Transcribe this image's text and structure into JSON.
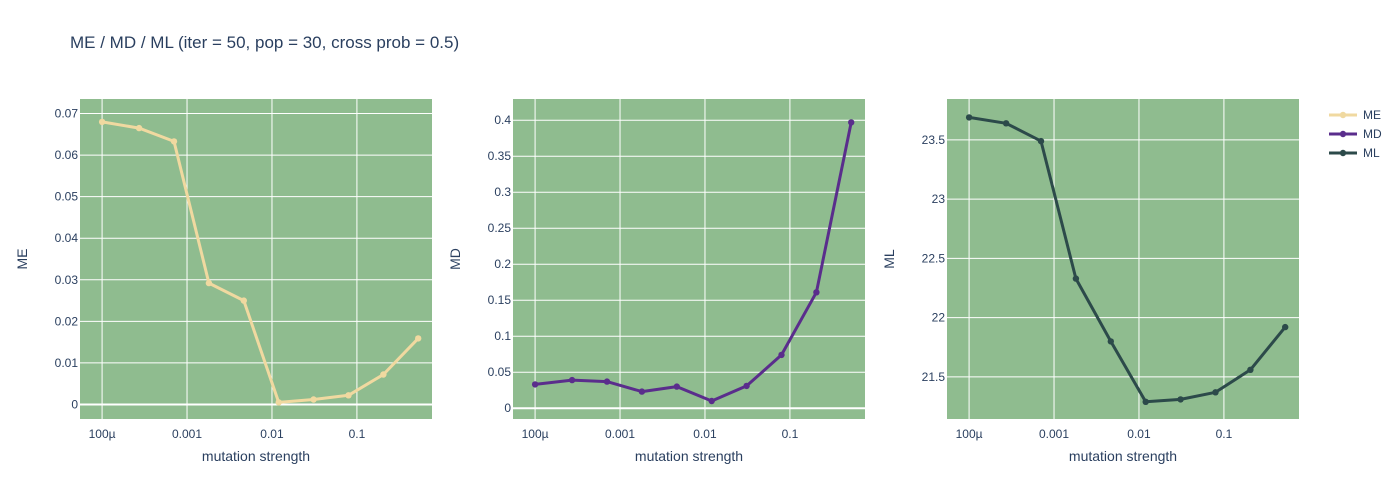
{
  "title": "ME / MD / ML (iter = 50, pop = 30, cross prob = 0.5)",
  "colors": {
    "plot_background": "#8fbc8f",
    "grid": "#ffffff",
    "ME": "#f0d9a0",
    "MD": "#5a2d8c",
    "ML": "#2c4a4a"
  },
  "chart_data": [
    {
      "type": "line",
      "xlabel": "mutation strength",
      "ylabel": "ME",
      "xscale": "log",
      "x_ticks": [
        "100µ",
        "0.001",
        "0.01",
        "0.1"
      ],
      "y_ticks": [
        "0",
        "0.01",
        "0.02",
        "0.03",
        "0.04",
        "0.05",
        "0.06",
        "0.07"
      ],
      "grid": true,
      "series": [
        {
          "name": "ME",
          "x": [
            0.0001,
            0.000273,
            0.000703,
            0.00181,
            0.00466,
            0.012,
            0.0309,
            0.0796,
            0.205,
            0.527
          ],
          "y": [
            0.068,
            0.0665,
            0.0633,
            0.0292,
            0.025,
            0.0005,
            0.0012,
            0.0022,
            0.0072,
            0.0159
          ]
        }
      ]
    },
    {
      "type": "line",
      "xlabel": "mutation strength",
      "ylabel": "MD",
      "xscale": "log",
      "x_ticks": [
        "100µ",
        "0.001",
        "0.01",
        "0.1"
      ],
      "y_ticks": [
        "0",
        "0.05",
        "0.1",
        "0.15",
        "0.2",
        "0.25",
        "0.3",
        "0.35",
        "0.4"
      ],
      "grid": true,
      "series": [
        {
          "name": "MD",
          "x": [
            0.0001,
            0.000273,
            0.000703,
            0.00181,
            0.00466,
            0.012,
            0.0309,
            0.0796,
            0.205,
            0.527
          ],
          "y": [
            0.033,
            0.039,
            0.037,
            0.023,
            0.03,
            0.01,
            0.031,
            0.074,
            0.161,
            0.397
          ]
        }
      ]
    },
    {
      "type": "line",
      "xlabel": "mutation strength",
      "ylabel": "ML",
      "xscale": "log",
      "x_ticks": [
        "100µ",
        "0.001",
        "0.01",
        "0.1"
      ],
      "y_ticks": [
        "21.5",
        "22",
        "22.5",
        "23",
        "23.5"
      ],
      "grid": true,
      "series": [
        {
          "name": "ML",
          "x": [
            0.0001,
            0.000273,
            0.000703,
            0.00181,
            0.00466,
            0.012,
            0.0309,
            0.0796,
            0.205,
            0.527
          ],
          "y": [
            23.69,
            23.64,
            23.49,
            22.33,
            21.8,
            21.29,
            21.31,
            21.37,
            21.56,
            21.92
          ]
        }
      ]
    }
  ],
  "legend": {
    "placement": "top-right",
    "items": [
      "ME",
      "MD",
      "ML"
    ]
  }
}
